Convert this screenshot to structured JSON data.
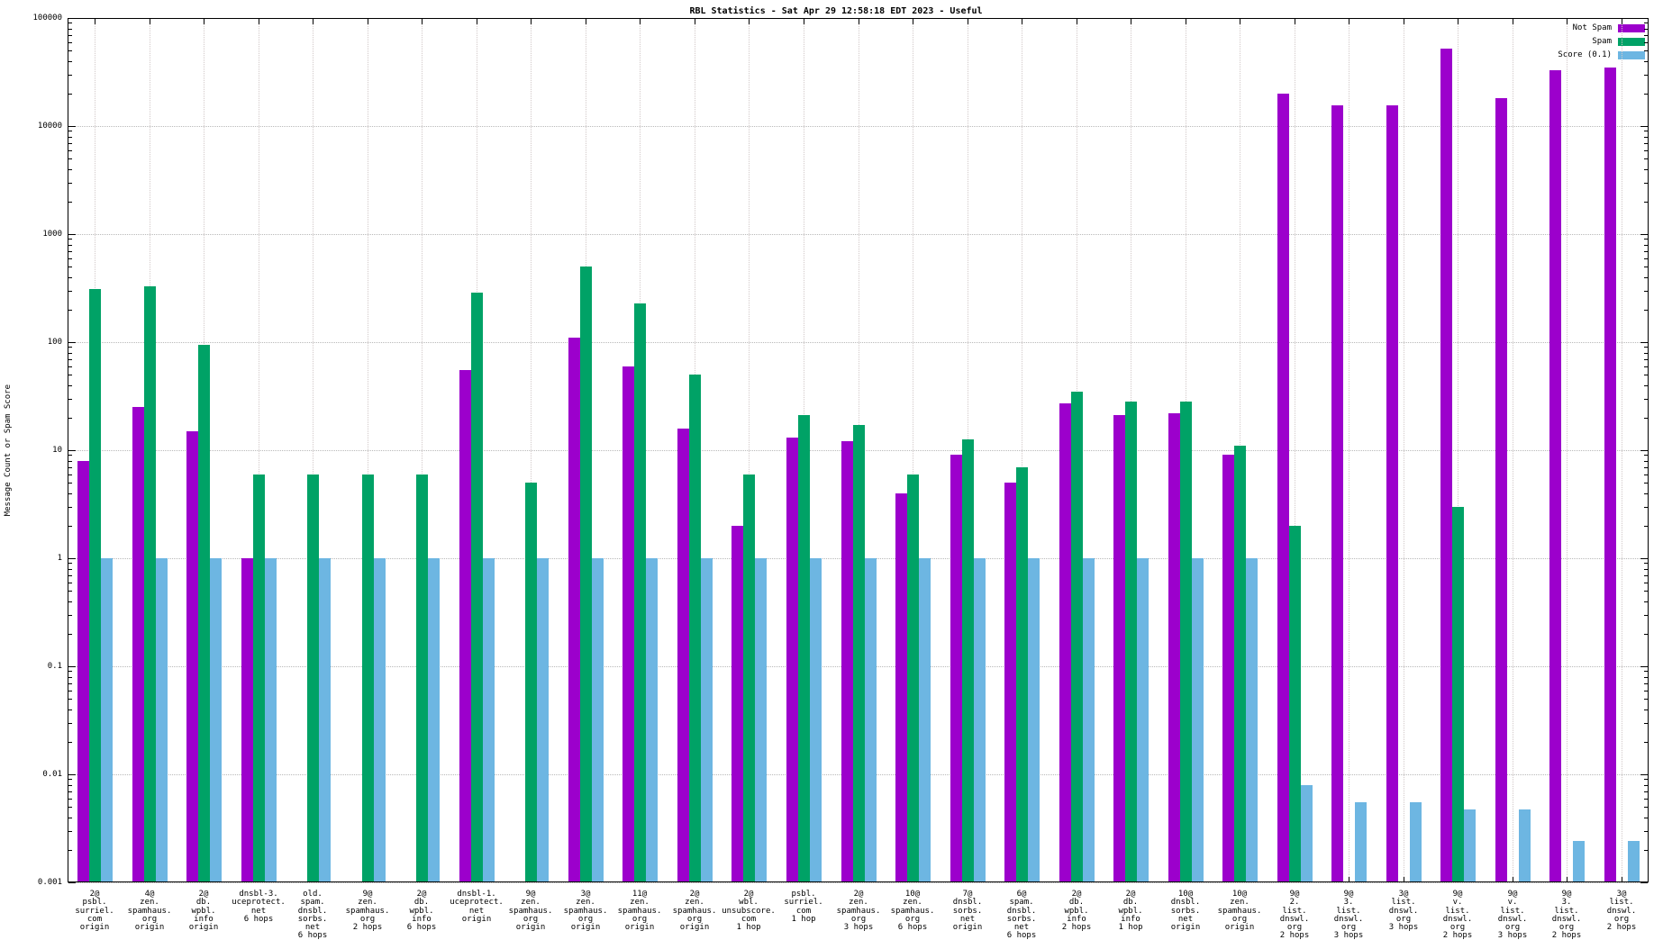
{
  "title": "RBL Statistics - Sat Apr 29 12:58:18 EDT 2023 - Useful",
  "ylabel": "Message Count or Spam Score",
  "chart_data": {
    "type": "bar",
    "scale_y": "log10",
    "ylim": [
      0.001,
      100000
    ],
    "ytick_labels": [
      "100000",
      "10000",
      "1000",
      "100",
      "10",
      "1",
      "0.1",
      "0.01",
      "0.001"
    ],
    "grid": true,
    "legend_position": "top-right",
    "categories": [
      [
        "2@",
        "psbl.",
        "surriel.",
        "com",
        "origin"
      ],
      [
        "4@",
        "zen.",
        "spamhaus.",
        "org",
        "origin"
      ],
      [
        "2@",
        "db.",
        "wpbl.",
        "info",
        "origin"
      ],
      [
        "dnsbl-3.",
        "uceprotect.",
        "net",
        "6 hops"
      ],
      [
        "old.",
        "spam.",
        "dnsbl.",
        "sorbs.",
        "net",
        "6 hops"
      ],
      [
        "9@",
        "zen.",
        "spamhaus.",
        "org",
        "2 hops"
      ],
      [
        "2@",
        "db.",
        "wpbl.",
        "info",
        "6 hops"
      ],
      [
        "dnsbl-1.",
        "uceprotect.",
        "net",
        "origin"
      ],
      [
        "9@",
        "zen.",
        "spamhaus.",
        "org",
        "origin"
      ],
      [
        "3@",
        "zen.",
        "spamhaus.",
        "org",
        "origin"
      ],
      [
        "11@",
        "zen.",
        "spamhaus.",
        "org",
        "origin"
      ],
      [
        "2@",
        "zen.",
        "spamhaus.",
        "org",
        "origin"
      ],
      [
        "2@",
        "wbl.",
        "unsubscore.",
        "com",
        "1 hop"
      ],
      [
        "psbl.",
        "surriel.",
        "com",
        "1 hop"
      ],
      [
        "2@",
        "zen.",
        "spamhaus.",
        "org",
        "3 hops"
      ],
      [
        "10@",
        "zen.",
        "spamhaus.",
        "org",
        "6 hops"
      ],
      [
        "7@",
        "dnsbl.",
        "sorbs.",
        "net",
        "origin"
      ],
      [
        "6@",
        "spam.",
        "dnsbl.",
        "sorbs.",
        "net",
        "6 hops"
      ],
      [
        "2@",
        "db.",
        "wpbl.",
        "info",
        "2 hops"
      ],
      [
        "2@",
        "db.",
        "wpbl.",
        "info",
        "1 hop"
      ],
      [
        "10@",
        "dnsbl.",
        "sorbs.",
        "net",
        "origin"
      ],
      [
        "10@",
        "zen.",
        "spamhaus.",
        "org",
        "origin"
      ],
      [
        "9@",
        "2.",
        "list.",
        "dnswl.",
        "org",
        "2 hops"
      ],
      [
        "9@",
        "3.",
        "list.",
        "dnswl.",
        "org",
        "3 hops"
      ],
      [
        "3@",
        "list.",
        "dnswl.",
        "org",
        "3 hops"
      ],
      [
        "9@",
        "v.",
        "list.",
        "dnswl.",
        "org",
        "2 hops"
      ],
      [
        "9@",
        "v.",
        "list.",
        "dnswl.",
        "org",
        "3 hops"
      ],
      [
        "9@",
        "3.",
        "list.",
        "dnswl.",
        "org",
        "2 hops"
      ],
      [
        "3@",
        "list.",
        "dnswl.",
        "org",
        "2 hops"
      ]
    ],
    "series": [
      {
        "name": "Not Spam",
        "color": "#9c00cc",
        "values": [
          8,
          25,
          15,
          1,
          null,
          null,
          null,
          55,
          null,
          110,
          60,
          16,
          2,
          13,
          12,
          4,
          9,
          5,
          27,
          21,
          22,
          9,
          20000,
          15500,
          15500,
          52000,
          18000,
          33000,
          35000
        ]
      },
      {
        "name": "Spam",
        "color": "#00a266",
        "values": [
          310,
          330,
          95,
          6,
          6,
          6,
          6,
          290,
          5,
          500,
          230,
          50,
          6,
          21,
          17,
          6,
          12.5,
          7,
          35,
          28,
          28,
          11,
          2,
          null,
          null,
          3,
          null,
          null,
          null
        ]
      },
      {
        "name": "Score (0.1)",
        "color": "#6db6e2",
        "values": [
          1,
          1,
          1,
          1,
          1,
          1,
          1,
          1,
          1,
          1,
          1,
          1,
          1,
          1,
          1,
          1,
          1,
          1,
          1,
          1,
          1,
          1,
          0.008,
          0.0055,
          0.0055,
          0.0047,
          0.0047,
          0.0024,
          0.0024
        ]
      }
    ]
  }
}
